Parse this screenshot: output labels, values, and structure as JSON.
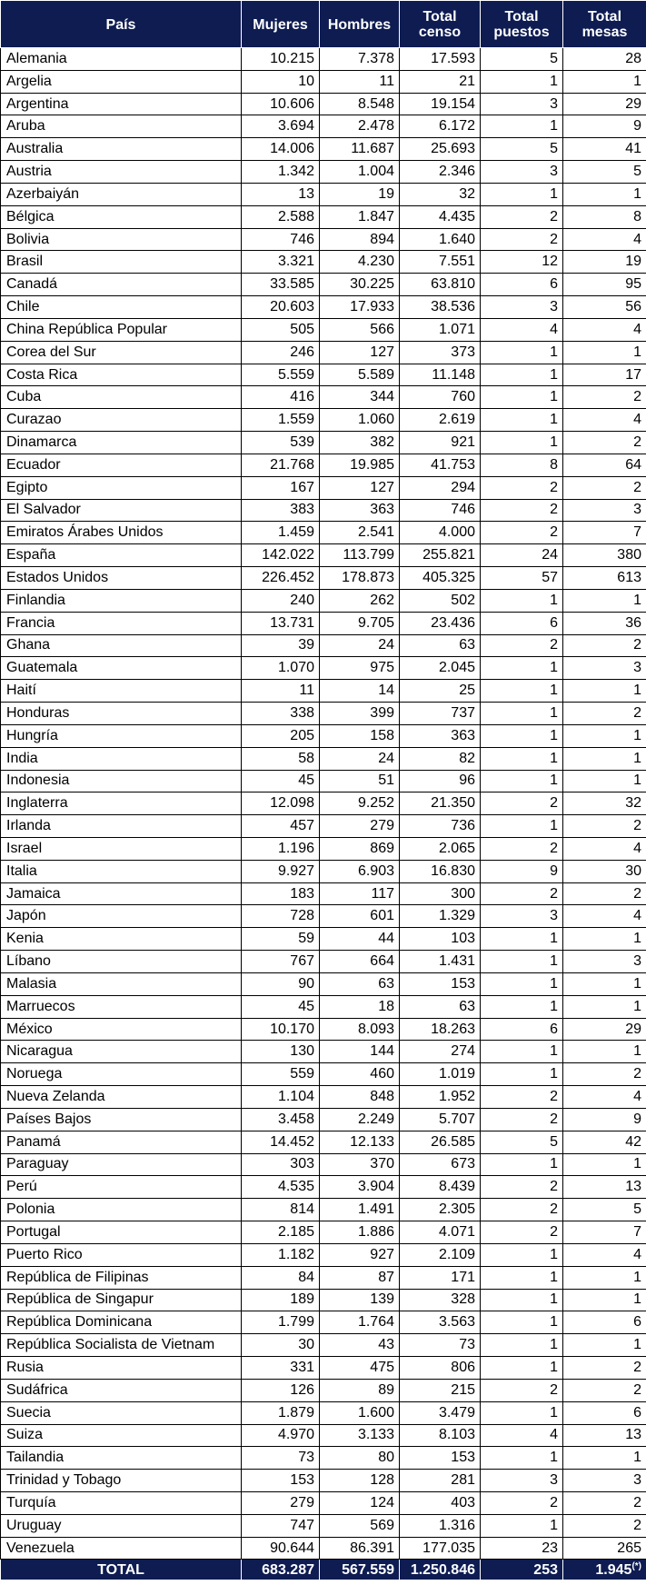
{
  "table": {
    "headers": {
      "pais": "País",
      "mujeres": "Mujeres",
      "hombres": "Hombres",
      "total_censo": "Total censo",
      "total_puestos": "Total puestos",
      "total_mesas": "Total mesas"
    },
    "header_color": "#0e1c52",
    "rows": [
      [
        "Alemania",
        "10.215",
        "7.378",
        "17.593",
        "5",
        "28"
      ],
      [
        "Argelia",
        "10",
        "11",
        "21",
        "1",
        "1"
      ],
      [
        "Argentina",
        "10.606",
        "8.548",
        "19.154",
        "3",
        "29"
      ],
      [
        "Aruba",
        "3.694",
        "2.478",
        "6.172",
        "1",
        "9"
      ],
      [
        "Australia",
        "14.006",
        "11.687",
        "25.693",
        "5",
        "41"
      ],
      [
        "Austria",
        "1.342",
        "1.004",
        "2.346",
        "3",
        "5"
      ],
      [
        "Azerbaiyán",
        "13",
        "19",
        "32",
        "1",
        "1"
      ],
      [
        "Bélgica",
        "2.588",
        "1.847",
        "4.435",
        "2",
        "8"
      ],
      [
        "Bolivia",
        "746",
        "894",
        "1.640",
        "2",
        "4"
      ],
      [
        "Brasil",
        "3.321",
        "4.230",
        "7.551",
        "12",
        "19"
      ],
      [
        "Canadá",
        "33.585",
        "30.225",
        "63.810",
        "6",
        "95"
      ],
      [
        "Chile",
        "20.603",
        "17.933",
        "38.536",
        "3",
        "56"
      ],
      [
        "China República Popular",
        "505",
        "566",
        "1.071",
        "4",
        "4"
      ],
      [
        "Corea del Sur",
        "246",
        "127",
        "373",
        "1",
        "1"
      ],
      [
        "Costa Rica",
        "5.559",
        "5.589",
        "11.148",
        "1",
        "17"
      ],
      [
        "Cuba",
        "416",
        "344",
        "760",
        "1",
        "2"
      ],
      [
        "Curazao",
        "1.559",
        "1.060",
        "2.619",
        "1",
        "4"
      ],
      [
        "Dinamarca",
        "539",
        "382",
        "921",
        "1",
        "2"
      ],
      [
        "Ecuador",
        "21.768",
        "19.985",
        "41.753",
        "8",
        "64"
      ],
      [
        "Egipto",
        "167",
        "127",
        "294",
        "2",
        "2"
      ],
      [
        "El Salvador",
        "383",
        "363",
        "746",
        "2",
        "3"
      ],
      [
        "Emiratos Árabes Unidos",
        "1.459",
        "2.541",
        "4.000",
        "2",
        "7"
      ],
      [
        "España",
        "142.022",
        "113.799",
        "255.821",
        "24",
        "380"
      ],
      [
        "Estados Unidos",
        "226.452",
        "178.873",
        "405.325",
        "57",
        "613"
      ],
      [
        "Finlandia",
        "240",
        "262",
        "502",
        "1",
        "1"
      ],
      [
        "Francia",
        "13.731",
        "9.705",
        "23.436",
        "6",
        "36"
      ],
      [
        "Ghana",
        "39",
        "24",
        "63",
        "2",
        "2"
      ],
      [
        "Guatemala",
        "1.070",
        "975",
        "2.045",
        "1",
        "3"
      ],
      [
        "Haití",
        "11",
        "14",
        "25",
        "1",
        "1"
      ],
      [
        "Honduras",
        "338",
        "399",
        "737",
        "1",
        "2"
      ],
      [
        "Hungría",
        "205",
        "158",
        "363",
        "1",
        "1"
      ],
      [
        "India",
        "58",
        "24",
        "82",
        "1",
        "1"
      ],
      [
        "Indonesia",
        "45",
        "51",
        "96",
        "1",
        "1"
      ],
      [
        "Inglaterra",
        "12.098",
        "9.252",
        "21.350",
        "2",
        "32"
      ],
      [
        "Irlanda",
        "457",
        "279",
        "736",
        "1",
        "2"
      ],
      [
        "Israel",
        "1.196",
        "869",
        "2.065",
        "2",
        "4"
      ],
      [
        "Italia",
        "9.927",
        "6.903",
        "16.830",
        "9",
        "30"
      ],
      [
        "Jamaica",
        "183",
        "117",
        "300",
        "2",
        "2"
      ],
      [
        "Japón",
        "728",
        "601",
        "1.329",
        "3",
        "4"
      ],
      [
        "Kenia",
        "59",
        "44",
        "103",
        "1",
        "1"
      ],
      [
        "Líbano",
        "767",
        "664",
        "1.431",
        "1",
        "3"
      ],
      [
        "Malasia",
        "90",
        "63",
        "153",
        "1",
        "1"
      ],
      [
        "Marruecos",
        "45",
        "18",
        "63",
        "1",
        "1"
      ],
      [
        "México",
        "10.170",
        "8.093",
        "18.263",
        "6",
        "29"
      ],
      [
        "Nicaragua",
        "130",
        "144",
        "274",
        "1",
        "1"
      ],
      [
        "Noruega",
        "559",
        "460",
        "1.019",
        "1",
        "2"
      ],
      [
        "Nueva Zelanda",
        "1.104",
        "848",
        "1.952",
        "2",
        "4"
      ],
      [
        "Países Bajos",
        "3.458",
        "2.249",
        "5.707",
        "2",
        "9"
      ],
      [
        "Panamá",
        "14.452",
        "12.133",
        "26.585",
        "5",
        "42"
      ],
      [
        "Paraguay",
        "303",
        "370",
        "673",
        "1",
        "1"
      ],
      [
        "Perú",
        "4.535",
        "3.904",
        "8.439",
        "2",
        "13"
      ],
      [
        "Polonia",
        "814",
        "1.491",
        "2.305",
        "2",
        "5"
      ],
      [
        "Portugal",
        "2.185",
        "1.886",
        "4.071",
        "2",
        "7"
      ],
      [
        "Puerto Rico",
        "1.182",
        "927",
        "2.109",
        "1",
        "4"
      ],
      [
        "República de Filipinas",
        "84",
        "87",
        "171",
        "1",
        "1"
      ],
      [
        "República de Singapur",
        "189",
        "139",
        "328",
        "1",
        "1"
      ],
      [
        "República Dominicana",
        "1.799",
        "1.764",
        "3.563",
        "1",
        "6"
      ],
      [
        "República Socialista de Vietnam",
        "30",
        "43",
        "73",
        "1",
        "1"
      ],
      [
        "Rusia",
        "331",
        "475",
        "806",
        "1",
        "2"
      ],
      [
        "Sudáfrica",
        "126",
        "89",
        "215",
        "2",
        "2"
      ],
      [
        "Suecia",
        "1.879",
        "1.600",
        "3.479",
        "1",
        "6"
      ],
      [
        "Suiza",
        "4.970",
        "3.133",
        "8.103",
        "4",
        "13"
      ],
      [
        "Tailandia",
        "73",
        "80",
        "153",
        "1",
        "1"
      ],
      [
        "Trinidad y Tobago",
        "153",
        "128",
        "281",
        "3",
        "3"
      ],
      [
        "Turquía",
        "279",
        "124",
        "403",
        "2",
        "2"
      ],
      [
        "Uruguay",
        "747",
        "569",
        "1.316",
        "1",
        "2"
      ],
      [
        "Venezuela",
        "90.644",
        "86.391",
        "177.035",
        "23",
        "265"
      ]
    ],
    "total": {
      "label": "TOTAL",
      "mujeres": "683.287",
      "hombres": "567.559",
      "total_censo": "1.250.846",
      "total_puestos": "253",
      "total_mesas": "1.945",
      "mesas_note": "(*)"
    }
  }
}
